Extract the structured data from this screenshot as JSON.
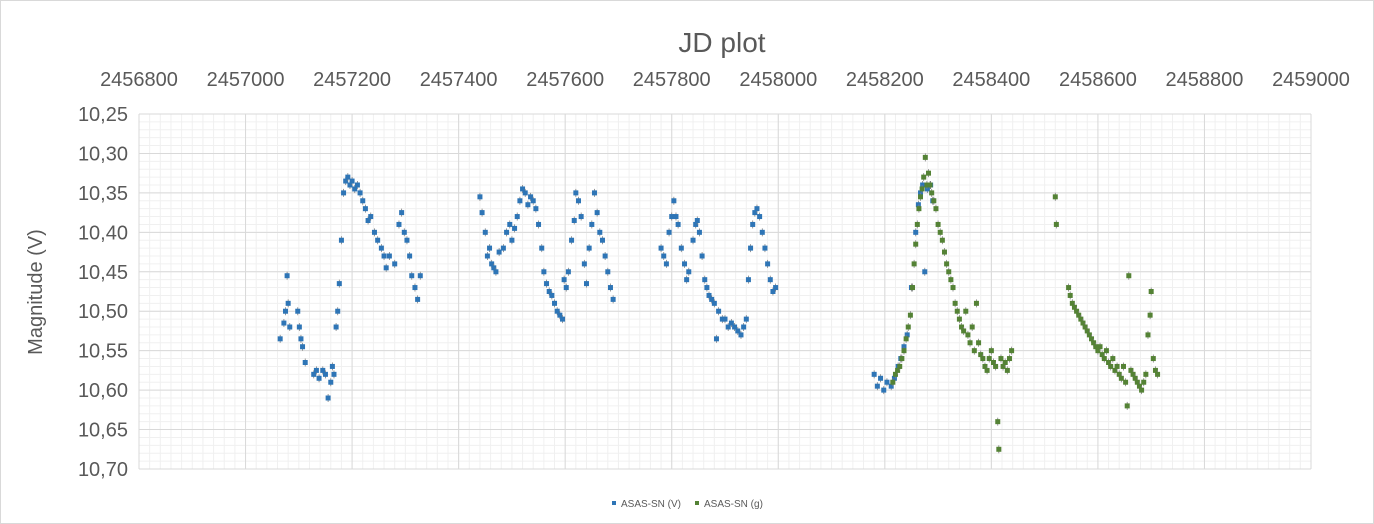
{
  "chart_data": {
    "type": "scatter",
    "title": "JD plot",
    "xlabel": "",
    "ylabel": "Magnitude (V)",
    "x_axis_position": "top",
    "y_reversed": true,
    "xlim": [
      2456800,
      2459000
    ],
    "ylim": [
      10.25,
      10.7
    ],
    "x_ticks": [
      "2456800",
      "2457000",
      "2457200",
      "2457400",
      "2457600",
      "2457800",
      "2458000",
      "2458200",
      "2458400",
      "2458600",
      "2458800",
      "2459000"
    ],
    "y_ticks": [
      "10,25",
      "10,30",
      "10,35",
      "10,40",
      "10,45",
      "10,50",
      "10,55",
      "10,60",
      "10,65",
      "10,70"
    ],
    "grid": true,
    "legend_position": "bottom",
    "series": [
      {
        "name": "ASAS-SN (V)",
        "color": "#2e75b6",
        "points": [
          [
            2457065,
            10.535
          ],
          [
            2457072,
            10.515
          ],
          [
            2457075,
            10.5
          ],
          [
            2457078,
            10.455
          ],
          [
            2457080,
            10.49
          ],
          [
            2457083,
            10.52
          ],
          [
            2457098,
            10.5
          ],
          [
            2457101,
            10.52
          ],
          [
            2457104,
            10.535
          ],
          [
            2457107,
            10.545
          ],
          [
            2457112,
            10.565
          ],
          [
            2457128,
            10.58
          ],
          [
            2457133,
            10.575
          ],
          [
            2457138,
            10.585
          ],
          [
            2457145,
            10.575
          ],
          [
            2457150,
            10.58
          ],
          [
            2457155,
            10.61
          ],
          [
            2457160,
            10.59
          ],
          [
            2457163,
            10.57
          ],
          [
            2457166,
            10.58
          ],
          [
            2457170,
            10.52
          ],
          [
            2457173,
            10.5
          ],
          [
            2457176,
            10.465
          ],
          [
            2457180,
            10.41
          ],
          [
            2457184,
            10.35
          ],
          [
            2457188,
            10.335
          ],
          [
            2457192,
            10.33
          ],
          [
            2457196,
            10.34
          ],
          [
            2457200,
            10.335
          ],
          [
            2457205,
            10.345
          ],
          [
            2457210,
            10.34
          ],
          [
            2457215,
            10.35
          ],
          [
            2457220,
            10.36
          ],
          [
            2457225,
            10.37
          ],
          [
            2457230,
            10.385
          ],
          [
            2457235,
            10.38
          ],
          [
            2457242,
            10.4
          ],
          [
            2457248,
            10.41
          ],
          [
            2457255,
            10.42
          ],
          [
            2457260,
            10.43
          ],
          [
            2457264,
            10.445
          ],
          [
            2457270,
            10.43
          ],
          [
            2457280,
            10.44
          ],
          [
            2457288,
            10.39
          ],
          [
            2457293,
            10.375
          ],
          [
            2457298,
            10.4
          ],
          [
            2457303,
            10.41
          ],
          [
            2457308,
            10.43
          ],
          [
            2457312,
            10.455
          ],
          [
            2457318,
            10.47
          ],
          [
            2457323,
            10.485
          ],
          [
            2457328,
            10.455
          ],
          [
            2457440,
            10.355
          ],
          [
            2457444,
            10.375
          ],
          [
            2457450,
            10.4
          ],
          [
            2457454,
            10.43
          ],
          [
            2457458,
            10.42
          ],
          [
            2457462,
            10.44
          ],
          [
            2457466,
            10.445
          ],
          [
            2457470,
            10.45
          ],
          [
            2457476,
            10.425
          ],
          [
            2457484,
            10.42
          ],
          [
            2457490,
            10.4
          ],
          [
            2457496,
            10.39
          ],
          [
            2457500,
            10.41
          ],
          [
            2457505,
            10.395
          ],
          [
            2457510,
            10.38
          ],
          [
            2457515,
            10.36
          ],
          [
            2457520,
            10.345
          ],
          [
            2457525,
            10.35
          ],
          [
            2457530,
            10.365
          ],
          [
            2457535,
            10.355
          ],
          [
            2457540,
            10.36
          ],
          [
            2457545,
            10.37
          ],
          [
            2457550,
            10.39
          ],
          [
            2457556,
            10.42
          ],
          [
            2457560,
            10.45
          ],
          [
            2457565,
            10.465
          ],
          [
            2457570,
            10.475
          ],
          [
            2457575,
            10.48
          ],
          [
            2457580,
            10.49
          ],
          [
            2457585,
            10.5
          ],
          [
            2457590,
            10.505
          ],
          [
            2457595,
            10.51
          ],
          [
            2457598,
            10.46
          ],
          [
            2457602,
            10.47
          ],
          [
            2457606,
            10.45
          ],
          [
            2457612,
            10.41
          ],
          [
            2457617,
            10.385
          ],
          [
            2457620,
            10.35
          ],
          [
            2457625,
            10.36
          ],
          [
            2457630,
            10.38
          ],
          [
            2457636,
            10.44
          ],
          [
            2457640,
            10.465
          ],
          [
            2457645,
            10.42
          ],
          [
            2457650,
            10.39
          ],
          [
            2457655,
            10.35
          ],
          [
            2457660,
            10.375
          ],
          [
            2457665,
            10.4
          ],
          [
            2457670,
            10.41
          ],
          [
            2457675,
            10.43
          ],
          [
            2457680,
            10.45
          ],
          [
            2457685,
            10.47
          ],
          [
            2457690,
            10.485
          ],
          [
            2457780,
            10.42
          ],
          [
            2457785,
            10.43
          ],
          [
            2457790,
            10.44
          ],
          [
            2457795,
            10.4
          ],
          [
            2457800,
            10.38
          ],
          [
            2457804,
            10.36
          ],
          [
            2457808,
            10.38
          ],
          [
            2457812,
            10.39
          ],
          [
            2457818,
            10.42
          ],
          [
            2457824,
            10.44
          ],
          [
            2457828,
            10.46
          ],
          [
            2457832,
            10.45
          ],
          [
            2457840,
            10.41
          ],
          [
            2457845,
            10.39
          ],
          [
            2457848,
            10.385
          ],
          [
            2457852,
            10.4
          ],
          [
            2457857,
            10.43
          ],
          [
            2457862,
            10.46
          ],
          [
            2457866,
            10.47
          ],
          [
            2457870,
            10.48
          ],
          [
            2457875,
            10.485
          ],
          [
            2457880,
            10.49
          ],
          [
            2457884,
            10.535
          ],
          [
            2457888,
            10.5
          ],
          [
            2457895,
            10.51
          ],
          [
            2457900,
            10.51
          ],
          [
            2457906,
            10.52
          ],
          [
            2457912,
            10.515
          ],
          [
            2457918,
            10.52
          ],
          [
            2457924,
            10.525
          ],
          [
            2457930,
            10.53
          ],
          [
            2457935,
            10.52
          ],
          [
            2457940,
            10.51
          ],
          [
            2457944,
            10.46
          ],
          [
            2457948,
            10.42
          ],
          [
            2457952,
            10.39
          ],
          [
            2457956,
            10.375
          ],
          [
            2457960,
            10.37
          ],
          [
            2457965,
            10.38
          ],
          [
            2457970,
            10.4
          ],
          [
            2457975,
            10.42
          ],
          [
            2457980,
            10.44
          ],
          [
            2457985,
            10.46
          ],
          [
            2457990,
            10.475
          ],
          [
            2457995,
            10.47
          ],
          [
            2458180,
            10.58
          ],
          [
            2458186,
            10.595
          ],
          [
            2458192,
            10.585
          ],
          [
            2458198,
            10.6
          ],
          [
            2458204,
            10.59
          ],
          [
            2458212,
            10.595
          ],
          [
            2458218,
            10.585
          ],
          [
            2458225,
            10.57
          ],
          [
            2458230,
            10.56
          ],
          [
            2458236,
            10.545
          ],
          [
            2458242,
            10.53
          ],
          [
            2458250,
            10.47
          ],
          [
            2458258,
            10.4
          ],
          [
            2458263,
            10.365
          ],
          [
            2458267,
            10.35
          ],
          [
            2458271,
            10.34
          ],
          [
            2458275,
            10.45
          ],
          [
            2458280,
            10.345
          ],
          [
            2458286,
            10.34
          ],
          [
            2458290,
            10.36
          ]
        ]
      },
      {
        "name": "ASAS-SN (g)",
        "color": "#548235",
        "points": [
          [
            2458215,
            10.59
          ],
          [
            2458220,
            10.58
          ],
          [
            2458224,
            10.575
          ],
          [
            2458228,
            10.57
          ],
          [
            2458232,
            10.56
          ],
          [
            2458236,
            10.55
          ],
          [
            2458240,
            10.535
          ],
          [
            2458244,
            10.52
          ],
          [
            2458248,
            10.505
          ],
          [
            2458252,
            10.47
          ],
          [
            2458255,
            10.44
          ],
          [
            2458258,
            10.415
          ],
          [
            2458261,
            10.39
          ],
          [
            2458264,
            10.37
          ],
          [
            2458267,
            10.355
          ],
          [
            2458270,
            10.345
          ],
          [
            2458273,
            10.33
          ],
          [
            2458276,
            10.305
          ],
          [
            2458279,
            10.34
          ],
          [
            2458282,
            10.325
          ],
          [
            2458285,
            10.34
          ],
          [
            2458288,
            10.35
          ],
          [
            2458292,
            10.36
          ],
          [
            2458296,
            10.37
          ],
          [
            2458300,
            10.39
          ],
          [
            2458304,
            10.4
          ],
          [
            2458308,
            10.41
          ],
          [
            2458312,
            10.425
          ],
          [
            2458316,
            10.44
          ],
          [
            2458320,
            10.45
          ],
          [
            2458324,
            10.46
          ],
          [
            2458328,
            10.47
          ],
          [
            2458332,
            10.49
          ],
          [
            2458336,
            10.5
          ],
          [
            2458340,
            10.51
          ],
          [
            2458344,
            10.52
          ],
          [
            2458348,
            10.525
          ],
          [
            2458352,
            10.5
          ],
          [
            2458356,
            10.53
          ],
          [
            2458360,
            10.54
          ],
          [
            2458364,
            10.52
          ],
          [
            2458368,
            10.55
          ],
          [
            2458372,
            10.49
          ],
          [
            2458376,
            10.54
          ],
          [
            2458380,
            10.555
          ],
          [
            2458384,
            10.56
          ],
          [
            2458388,
            10.57
          ],
          [
            2458392,
            10.575
          ],
          [
            2458396,
            10.56
          ],
          [
            2458400,
            10.55
          ],
          [
            2458404,
            10.565
          ],
          [
            2458408,
            10.57
          ],
          [
            2458412,
            10.64
          ],
          [
            2458414,
            10.675
          ],
          [
            2458418,
            10.56
          ],
          [
            2458422,
            10.57
          ],
          [
            2458426,
            10.565
          ],
          [
            2458430,
            10.575
          ],
          [
            2458434,
            10.56
          ],
          [
            2458438,
            10.55
          ],
          [
            2458520,
            10.355
          ],
          [
            2458522,
            10.39
          ],
          [
            2458545,
            10.47
          ],
          [
            2458548,
            10.48
          ],
          [
            2458552,
            10.49
          ],
          [
            2458556,
            10.495
          ],
          [
            2458560,
            10.5
          ],
          [
            2458564,
            10.505
          ],
          [
            2458568,
            10.51
          ],
          [
            2458572,
            10.515
          ],
          [
            2458576,
            10.52
          ],
          [
            2458580,
            10.525
          ],
          [
            2458584,
            10.53
          ],
          [
            2458588,
            10.535
          ],
          [
            2458592,
            10.54
          ],
          [
            2458596,
            10.545
          ],
          [
            2458600,
            10.55
          ],
          [
            2458604,
            10.545
          ],
          [
            2458608,
            10.555
          ],
          [
            2458612,
            10.56
          ],
          [
            2458616,
            10.55
          ],
          [
            2458620,
            10.565
          ],
          [
            2458624,
            10.57
          ],
          [
            2458628,
            10.56
          ],
          [
            2458632,
            10.575
          ],
          [
            2458636,
            10.57
          ],
          [
            2458640,
            10.58
          ],
          [
            2458644,
            10.585
          ],
          [
            2458648,
            10.57
          ],
          [
            2458652,
            10.59
          ],
          [
            2458655,
            10.62
          ],
          [
            2458658,
            10.455
          ],
          [
            2458662,
            10.575
          ],
          [
            2458666,
            10.58
          ],
          [
            2458670,
            10.585
          ],
          [
            2458674,
            10.59
          ],
          [
            2458678,
            10.595
          ],
          [
            2458682,
            10.6
          ],
          [
            2458686,
            10.59
          ],
          [
            2458690,
            10.58
          ],
          [
            2458694,
            10.53
          ],
          [
            2458698,
            10.505
          ],
          [
            2458700,
            10.475
          ],
          [
            2458704,
            10.56
          ],
          [
            2458708,
            10.575
          ],
          [
            2458712,
            10.58
          ]
        ]
      }
    ]
  }
}
